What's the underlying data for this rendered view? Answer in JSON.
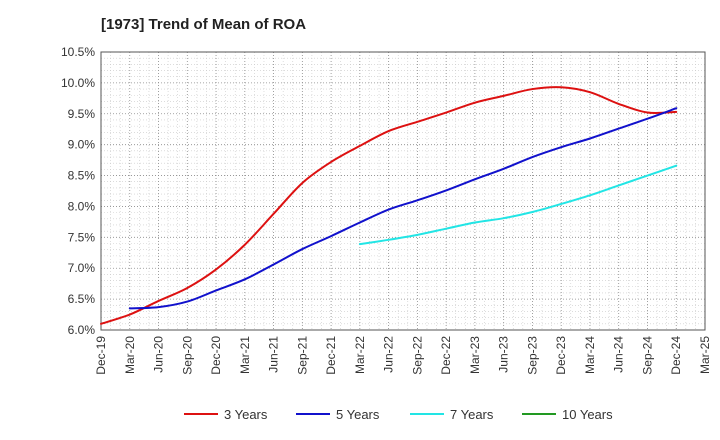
{
  "chart_data": {
    "type": "line",
    "title": "[1973]  Trend of Mean of ROA",
    "xlabel": "",
    "ylabel": "",
    "x_ticks": [
      "Dec-19",
      "Mar-20",
      "Jun-20",
      "Sep-20",
      "Dec-20",
      "Mar-21",
      "Jun-21",
      "Sep-21",
      "Dec-21",
      "Mar-22",
      "Jun-22",
      "Sep-22",
      "Dec-22",
      "Mar-23",
      "Jun-23",
      "Sep-23",
      "Dec-23",
      "Mar-24",
      "Jun-24",
      "Sep-24",
      "Dec-24",
      "Mar-25"
    ],
    "y_ticks": [
      "6.0%",
      "6.5%",
      "7.0%",
      "7.5%",
      "8.0%",
      "8.5%",
      "9.0%",
      "9.5%",
      "10.0%",
      "10.5%"
    ],
    "ylim": [
      6.0,
      10.5
    ],
    "grid": true,
    "legend_position": "bottom",
    "series": [
      {
        "name": "3 Years",
        "color": "#dd1111",
        "points": [
          [
            "Dec-19",
            6.1
          ],
          [
            "Mar-20",
            6.25
          ],
          [
            "Jun-20",
            6.47
          ],
          [
            "Sep-20",
            6.68
          ],
          [
            "Dec-20",
            6.98
          ],
          [
            "Mar-21",
            7.38
          ],
          [
            "Jun-21",
            7.88
          ],
          [
            "Sep-21",
            8.38
          ],
          [
            "Dec-21",
            8.72
          ],
          [
            "Mar-22",
            8.98
          ],
          [
            "Jun-22",
            9.22
          ],
          [
            "Sep-22",
            9.37
          ],
          [
            "Dec-22",
            9.52
          ],
          [
            "Mar-23",
            9.68
          ],
          [
            "Jun-23",
            9.79
          ],
          [
            "Sep-23",
            9.9
          ],
          [
            "Dec-23",
            9.93
          ],
          [
            "Mar-24",
            9.85
          ],
          [
            "Jun-24",
            9.66
          ],
          [
            "Sep-24",
            9.52
          ],
          [
            "Dec-24",
            9.53
          ]
        ]
      },
      {
        "name": "5 Years",
        "color": "#1111cc",
        "points": [
          [
            "Mar-20",
            6.35
          ],
          [
            "Jun-20",
            6.37
          ],
          [
            "Sep-20",
            6.46
          ],
          [
            "Dec-20",
            6.64
          ],
          [
            "Mar-21",
            6.82
          ],
          [
            "Jun-21",
            7.06
          ],
          [
            "Sep-21",
            7.31
          ],
          [
            "Dec-21",
            7.52
          ],
          [
            "Mar-22",
            7.74
          ],
          [
            "Jun-22",
            7.95
          ],
          [
            "Sep-22",
            8.1
          ],
          [
            "Dec-22",
            8.26
          ],
          [
            "Mar-23",
            8.44
          ],
          [
            "Jun-23",
            8.61
          ],
          [
            "Sep-23",
            8.8
          ],
          [
            "Dec-23",
            8.96
          ],
          [
            "Mar-24",
            9.1
          ],
          [
            "Jun-24",
            9.26
          ],
          [
            "Sep-24",
            9.42
          ],
          [
            "Dec-24",
            9.59
          ]
        ]
      },
      {
        "name": "7 Years",
        "color": "#22e5e5",
        "points": [
          [
            "Mar-22",
            7.39
          ],
          [
            "Jun-22",
            7.46
          ],
          [
            "Sep-22",
            7.54
          ],
          [
            "Dec-22",
            7.64
          ],
          [
            "Mar-23",
            7.74
          ],
          [
            "Jun-23",
            7.81
          ],
          [
            "Sep-23",
            7.91
          ],
          [
            "Dec-23",
            8.04
          ],
          [
            "Mar-24",
            8.18
          ],
          [
            "Jun-24",
            8.34
          ],
          [
            "Sep-24",
            8.5
          ],
          [
            "Dec-24",
            8.66
          ]
        ]
      },
      {
        "name": "10 Years",
        "color": "#229922",
        "points": []
      }
    ]
  }
}
